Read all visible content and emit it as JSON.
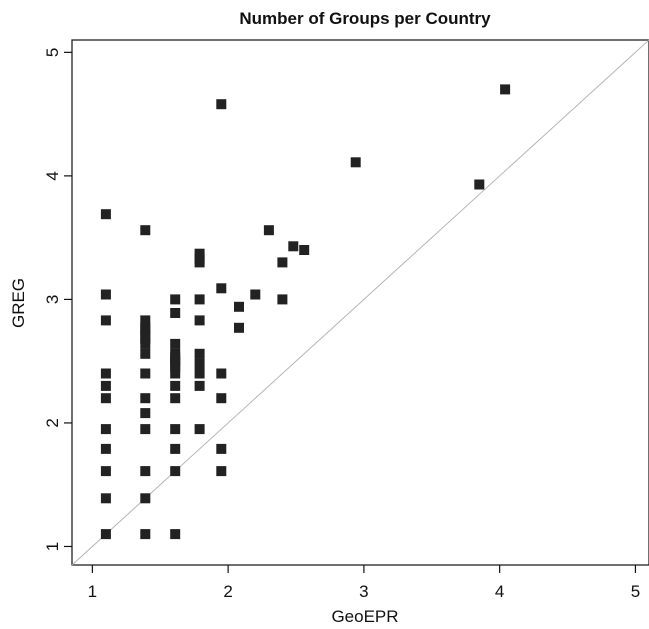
{
  "chart_data": {
    "type": "scatter",
    "title": "Number of Groups per Country",
    "xlabel": "GeoEPR",
    "ylabel": "GREG",
    "xlim": [
      0.85,
      5.1
    ],
    "ylim": [
      0.85,
      5.1
    ],
    "xticks": [
      1,
      2,
      3,
      4,
      5
    ],
    "yticks": [
      1,
      2,
      3,
      4,
      5
    ],
    "grid": false,
    "reference_line": "y = x",
    "marker": "filled-square",
    "point_color": "#222222",
    "line_color": "#b5b5b5",
    "x": [
      1.1,
      1.1,
      1.1,
      1.1,
      1.1,
      1.1,
      1.1,
      1.1,
      1.1,
      1.1,
      1.1,
      1.39,
      1.39,
      1.39,
      1.39,
      1.39,
      1.39,
      1.39,
      1.39,
      1.39,
      1.39,
      1.39,
      1.39,
      1.39,
      1.39,
      1.39,
      1.61,
      1.61,
      1.61,
      1.61,
      1.61,
      1.61,
      1.61,
      1.61,
      1.61,
      1.61,
      1.61,
      1.61,
      1.61,
      1.61,
      1.61,
      1.79,
      1.79,
      1.79,
      1.79,
      1.79,
      1.79,
      1.79,
      1.79,
      1.79,
      1.79,
      1.95,
      1.95,
      1.95,
      1.95,
      1.95,
      1.95,
      2.08,
      2.08,
      2.2,
      2.3,
      2.4,
      2.4,
      2.48,
      2.56,
      2.94,
      3.85,
      4.04
    ],
    "y": [
      3.69,
      3.04,
      2.83,
      2.4,
      2.3,
      2.2,
      1.95,
      1.79,
      1.61,
      1.39,
      1.1,
      3.56,
      2.83,
      2.77,
      2.71,
      2.64,
      2.56,
      2.4,
      2.2,
      2.08,
      1.95,
      1.61,
      1.39,
      1.1,
      2.75,
      2.68,
      3.0,
      2.89,
      2.64,
      2.56,
      2.5,
      2.48,
      2.4,
      2.3,
      2.2,
      1.95,
      1.79,
      1.61,
      1.1,
      2.45,
      2.53,
      3.37,
      3.3,
      3.0,
      2.83,
      2.56,
      2.48,
      2.4,
      2.3,
      1.95,
      3.33,
      4.58,
      3.09,
      2.4,
      2.2,
      1.79,
      1.61,
      2.94,
      2.77,
      3.04,
      3.56,
      3.3,
      3.0,
      3.43,
      3.4,
      4.11,
      3.93,
      4.7
    ]
  }
}
